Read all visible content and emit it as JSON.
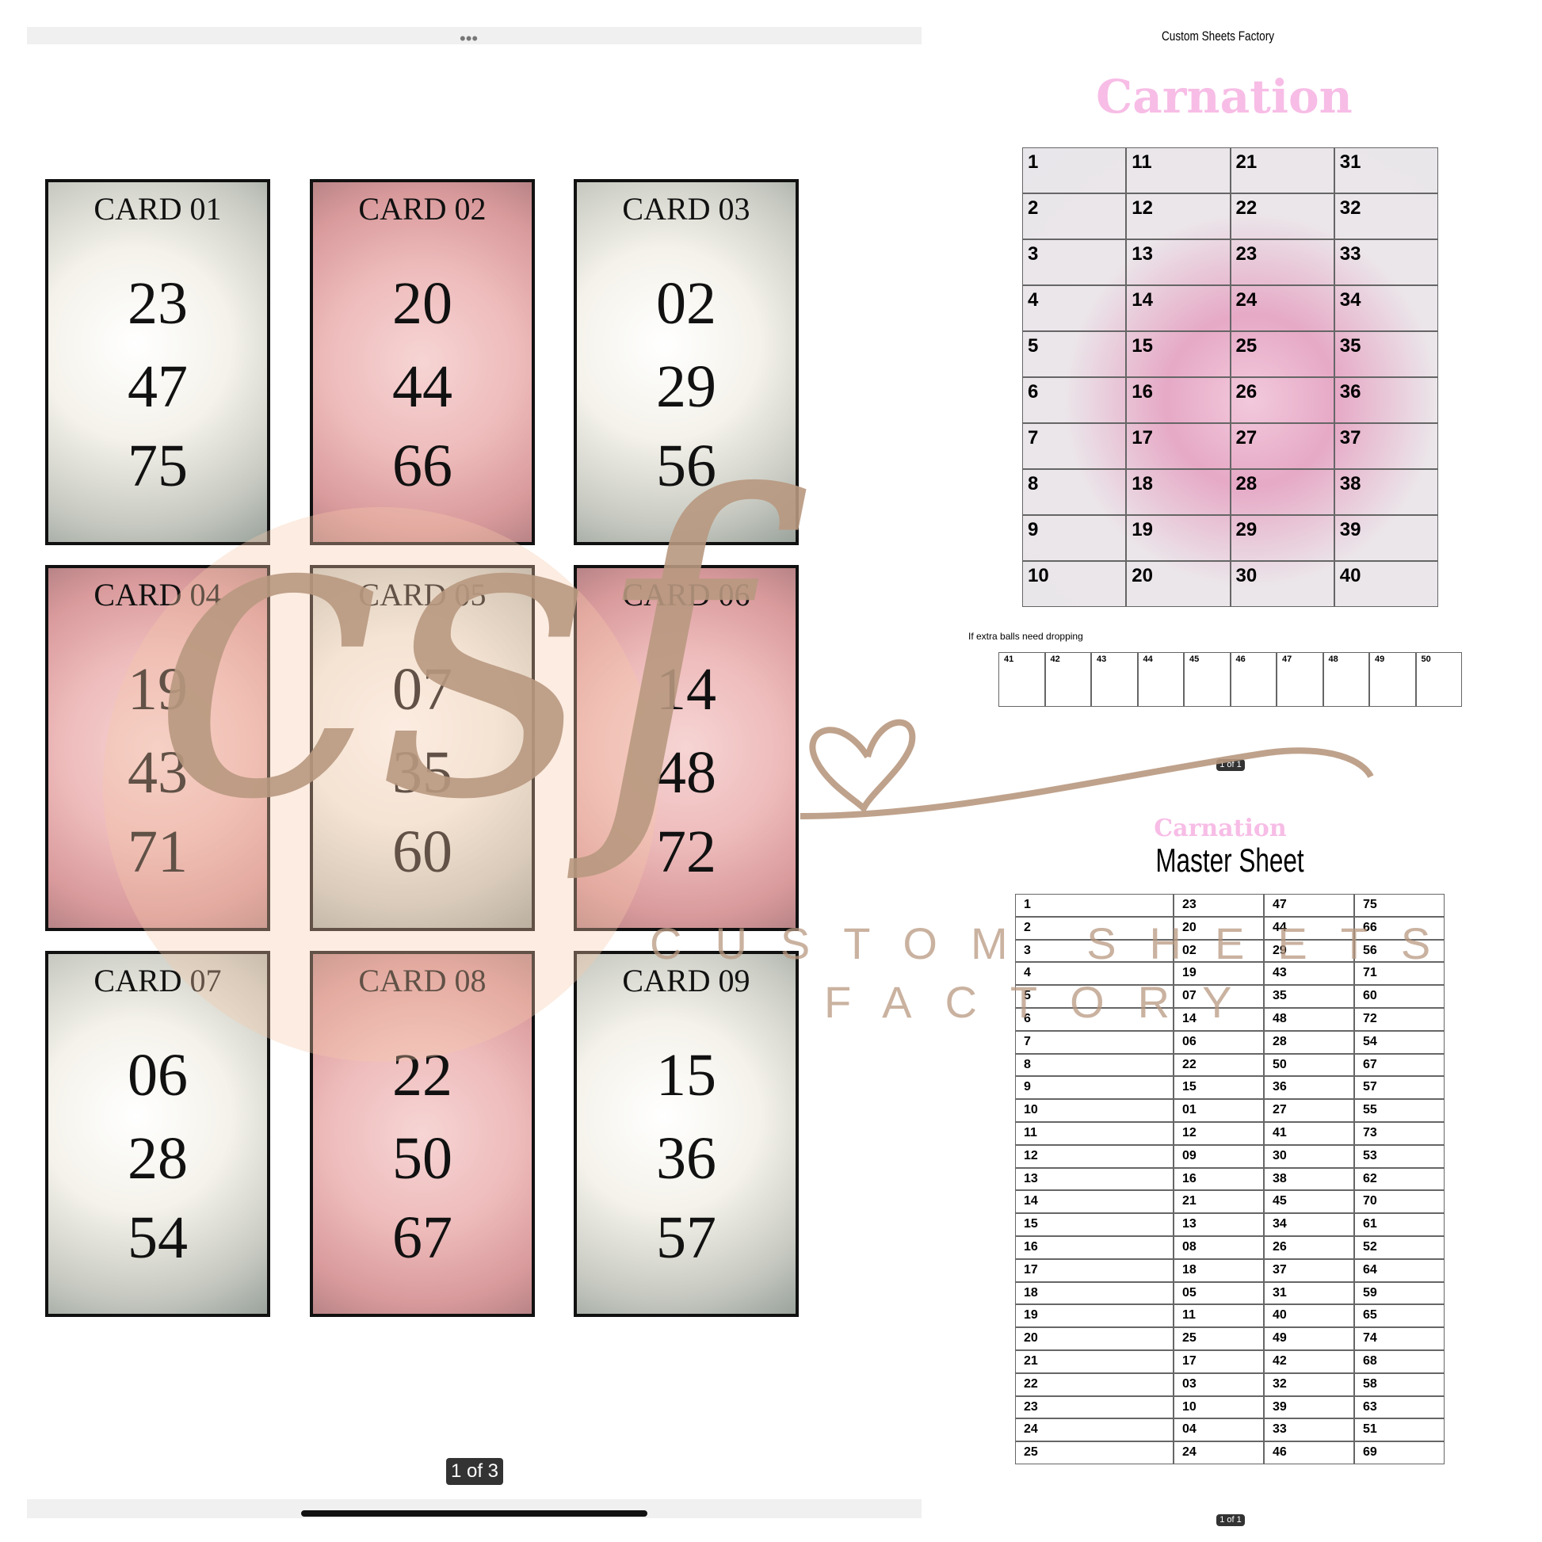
{
  "viewer": {
    "page_indicator": "1 of 3"
  },
  "cards": [
    {
      "label": "CARD 01",
      "numbers": [
        "23",
        "47",
        "75"
      ]
    },
    {
      "label": "CARD 02",
      "numbers": [
        "20",
        "44",
        "66"
      ]
    },
    {
      "label": "CARD 03",
      "numbers": [
        "02",
        "29",
        "56"
      ]
    },
    {
      "label": "CARD 04",
      "numbers": [
        "19",
        "43",
        "71"
      ]
    },
    {
      "label": "CARD 05",
      "numbers": [
        "07",
        "35",
        "60"
      ]
    },
    {
      "label": "CARD 06",
      "numbers": [
        "14",
        "48",
        "72"
      ]
    },
    {
      "label": "CARD 07",
      "numbers": [
        "06",
        "28",
        "54"
      ]
    },
    {
      "label": "CARD 08",
      "numbers": [
        "22",
        "50",
        "67"
      ]
    },
    {
      "label": "CARD 09",
      "numbers": [
        "15",
        "36",
        "57"
      ]
    }
  ],
  "watermark": {
    "logo": "csf",
    "line1": "CUSTOM SHEETS",
    "line2": "FACTORY"
  },
  "call_sheet": {
    "brand": "Custom Sheets Factory",
    "title": "Carnation",
    "columns": [
      [
        "1",
        "2",
        "3",
        "4",
        "5",
        "6",
        "7",
        "8",
        "9",
        "10"
      ],
      [
        "11",
        "12",
        "13",
        "14",
        "15",
        "16",
        "17",
        "18",
        "19",
        "20"
      ],
      [
        "21",
        "22",
        "23",
        "24",
        "25",
        "26",
        "27",
        "28",
        "29",
        "30"
      ],
      [
        "31",
        "32",
        "33",
        "34",
        "35",
        "36",
        "37",
        "38",
        "39",
        "40"
      ]
    ],
    "extra_note": "If extra balls need dropping",
    "extra": [
      "41",
      "42",
      "43",
      "44",
      "45",
      "46",
      "47",
      "48",
      "49",
      "50"
    ],
    "page": "1 of 1"
  },
  "master_sheet": {
    "title": "Carnation",
    "subtitle": "Master Sheet",
    "rows": [
      [
        "1",
        "23",
        "47",
        "75"
      ],
      [
        "2",
        "20",
        "44",
        "66"
      ],
      [
        "3",
        "02",
        "29",
        "56"
      ],
      [
        "4",
        "19",
        "43",
        "71"
      ],
      [
        "5",
        "07",
        "35",
        "60"
      ],
      [
        "6",
        "14",
        "48",
        "72"
      ],
      [
        "7",
        "06",
        "28",
        "54"
      ],
      [
        "8",
        "22",
        "50",
        "67"
      ],
      [
        "9",
        "15",
        "36",
        "57"
      ],
      [
        "10",
        "01",
        "27",
        "55"
      ],
      [
        "11",
        "12",
        "41",
        "73"
      ],
      [
        "12",
        "09",
        "30",
        "53"
      ],
      [
        "13",
        "16",
        "38",
        "62"
      ],
      [
        "14",
        "21",
        "45",
        "70"
      ],
      [
        "15",
        "13",
        "34",
        "61"
      ],
      [
        "16",
        "08",
        "26",
        "52"
      ],
      [
        "17",
        "18",
        "37",
        "64"
      ],
      [
        "18",
        "05",
        "31",
        "59"
      ],
      [
        "19",
        "11",
        "40",
        "65"
      ],
      [
        "20",
        "25",
        "49",
        "74"
      ],
      [
        "21",
        "17",
        "42",
        "68"
      ],
      [
        "22",
        "03",
        "32",
        "58"
      ],
      [
        "23",
        "10",
        "39",
        "63"
      ],
      [
        "24",
        "04",
        "33",
        "51"
      ],
      [
        "25",
        "24",
        "46",
        "69"
      ]
    ],
    "page": "1 of 1"
  }
}
